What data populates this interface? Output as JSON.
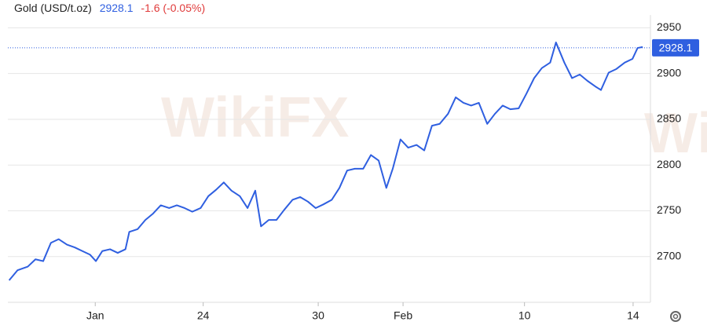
{
  "chart_data": {
    "type": "line",
    "title": "Gold (USD/t.oz)",
    "price_text": "2928.1",
    "change_text": "-1.6 (-0.05%)",
    "watermark": "WikiFX",
    "last_price": 2928.1,
    "x": [
      0.2,
      1.5,
      3.1,
      4.3,
      5.5,
      6.7,
      7.9,
      9.2,
      10.4,
      11.6,
      12.8,
      13.7,
      14.7,
      15.9,
      17.1,
      18.3,
      18.9,
      20.2,
      21.4,
      22.6,
      23.8,
      25.1,
      26.3,
      27.5,
      28.7,
      30.0,
      31.2,
      32.4,
      33.6,
      34.8,
      36.1,
      37.3,
      38.5,
      39.4,
      40.6,
      41.8,
      43.0,
      44.3,
      45.5,
      46.7,
      47.9,
      49.1,
      50.4,
      51.6,
      52.8,
      54.0,
      55.3,
      56.5,
      57.7,
      58.9,
      59.9,
      61.1,
      62.3,
      63.6,
      64.8,
      66.0,
      67.2,
      68.5,
      69.7,
      70.9,
      72.1,
      73.3,
      74.6,
      75.8,
      77.0,
      78.2,
      79.5,
      80.7,
      81.9,
      83.1,
      84.4,
      85.3,
      86.6,
      87.8,
      89.0,
      90.2,
      91.4,
      92.3,
      93.5,
      94.7,
      96.0,
      97.2,
      98.0,
      98.8
    ],
    "series": [
      {
        "name": "Gold",
        "color": "#2f5fe0",
        "values": [
          2674,
          2685,
          2689,
          2697,
          2695,
          2715,
          2719,
          2713,
          2710,
          2706,
          2702,
          2695,
          2706,
          2708,
          2704,
          2708,
          2727,
          2730,
          2740,
          2747,
          2756,
          2753,
          2756,
          2753,
          2749,
          2753,
          2766,
          2773,
          2781,
          2772,
          2766,
          2753,
          2772,
          2733,
          2740,
          2740,
          2751,
          2762,
          2765,
          2760,
          2753,
          2757,
          2762,
          2775,
          2794,
          2796,
          2796,
          2811,
          2805,
          2775,
          2796,
          2828,
          2819,
          2822,
          2816,
          2843,
          2845,
          2856,
          2874,
          2868,
          2865,
          2868,
          2845,
          2856,
          2865,
          2861,
          2862,
          2878,
          2895,
          2906,
          2912,
          2934,
          2912,
          2895,
          2899,
          2892,
          2886,
          2882,
          2901,
          2905,
          2912,
          2916,
          2928,
          2929
        ]
      }
    ],
    "xlim": [
      0,
      100
    ],
    "xticks": [
      {
        "value": 13.6,
        "label": "Jan"
      },
      {
        "value": 30.4,
        "label": "24"
      },
      {
        "value": 48.3,
        "label": "30"
      },
      {
        "value": 61.5,
        "label": "Feb"
      },
      {
        "value": 80.4,
        "label": "10"
      },
      {
        "value": 97.3,
        "label": "14"
      }
    ],
    "ylim": [
      2650,
      2964
    ],
    "yticks": [
      2700,
      2750,
      2800,
      2850,
      2900,
      2950
    ],
    "grid": true
  }
}
